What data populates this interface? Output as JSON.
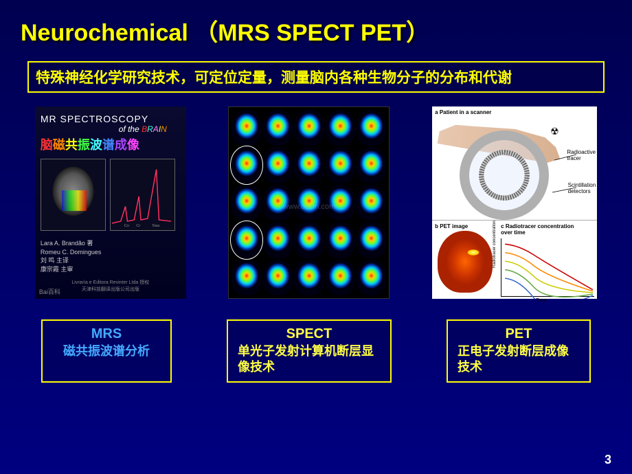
{
  "title": "Neurochemical （MRS   SPECT  PET）",
  "subtitle": "特殊神经化学研究技术，可定位定量，测量脑内各种生物分子的分布和代谢",
  "book": {
    "line1": "MR SPECTROSCOPY",
    "line2_prefix": "of the ",
    "line2_word": "BRAIN",
    "cn_title_chars": [
      "脑",
      "磁",
      "共",
      "振",
      "波",
      "谱",
      "成",
      "像"
    ],
    "spectrum_labels": [
      "Co",
      "Cr",
      "Naa"
    ],
    "authors_en": "Lara A. Brandão 著\nRomeu C. Domingues",
    "authors_cn": "刘 鸣  主译\n康宗霞  主审",
    "publisher": "Livraría e Editora Revinter Ltda 授权\n天津科技翻译出版公司出版",
    "baidu": "Bai百科"
  },
  "spect": {
    "grid_size": 25,
    "circled_indices": [
      5,
      15
    ],
    "watermark": "www.docin.com"
  },
  "pet_diagram": {
    "label_a": "a  Patient in a scanner",
    "label_b": "b  PET image",
    "label_c": "c  Radiotracer concentration\n   over time",
    "annot_tracer": "Radioactive\ntracer",
    "annot_detectors": "Scintillation\ndetectors",
    "y_axis": "Radiotracer concentration",
    "x_axis": "Time",
    "decay_colors": [
      "#cc0000",
      "#ff8800",
      "#cccc00",
      "#66aa44",
      "#3366cc"
    ]
  },
  "labels": {
    "mrs": {
      "title": "MRS",
      "desc": "磁共振波谱分析"
    },
    "spect": {
      "title": "SPECT",
      "desc": "单光子发射计算机断层显像技术"
    },
    "pet": {
      "title": "PET",
      "desc": "正电子发射断层成像技术"
    }
  },
  "page_number": "3",
  "colors": {
    "title": "#ffff00",
    "box_border": "#ffff00",
    "mrs_text": "#44aaff",
    "yellow_text": "#ffff44"
  }
}
